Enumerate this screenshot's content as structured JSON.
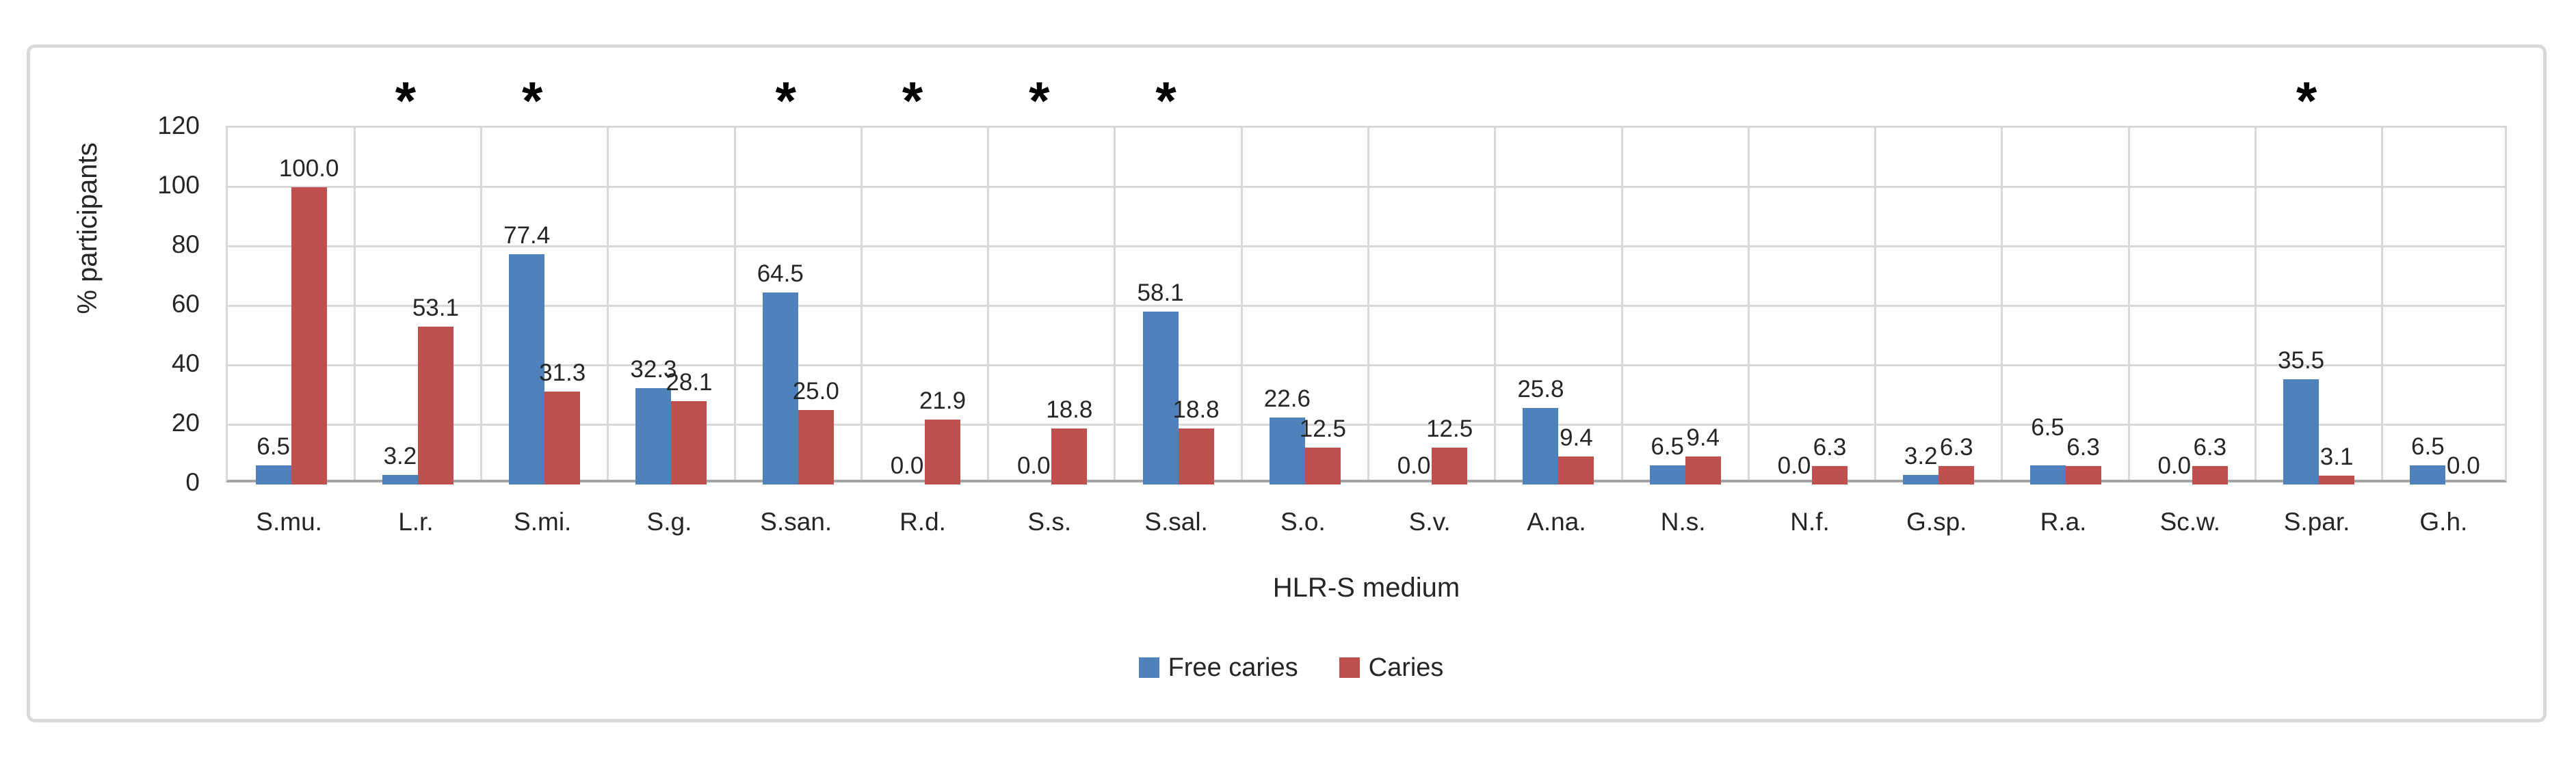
{
  "chart_data": {
    "type": "bar",
    "title": "",
    "xlabel": "HLR-S medium",
    "ylabel": "% participants",
    "categories": [
      "S.mu.",
      "L.r.",
      "S.mi.",
      "S.g.",
      "S.san.",
      "R.d.",
      "S.s.",
      "S.sal.",
      "S.o.",
      "S.v.",
      "A.na.",
      "N.s.",
      "N.f.",
      "G.sp.",
      "R.a.",
      "Sc.w.",
      "S.par.",
      "G.h."
    ],
    "series": [
      {
        "name": "Free caries",
        "color": "#4F81BD",
        "values": [
          6.5,
          3.2,
          77.4,
          32.3,
          64.5,
          0.0,
          0.0,
          58.1,
          22.6,
          0.0,
          25.8,
          6.5,
          0.0,
          3.2,
          6.5,
          0.0,
          35.5,
          6.5
        ]
      },
      {
        "name": "Caries",
        "color": "#C0504D",
        "values": [
          100.0,
          53.1,
          31.3,
          28.1,
          25.0,
          21.9,
          18.8,
          18.8,
          12.5,
          12.5,
          9.4,
          9.4,
          6.3,
          6.3,
          6.3,
          6.3,
          3.1,
          0.0
        ]
      }
    ],
    "value_label_decimals": 1,
    "significance_marker": "*",
    "significance_categories": [
      "L.r.",
      "S.mi.",
      "S.san.",
      "R.d.",
      "S.s.",
      "S.sal.",
      "S.par."
    ],
    "yticks": [
      0,
      20,
      40,
      60,
      80,
      100,
      120
    ],
    "ylim": [
      0,
      120
    ],
    "grid": true,
    "legend_position": "bottom"
  },
  "colors": {
    "gridline": "#D9D9D9",
    "axis_line": "#A6A6A6",
    "outer_border": "#D9D9D9",
    "text": "#262626",
    "background": "#FFFFFF"
  }
}
